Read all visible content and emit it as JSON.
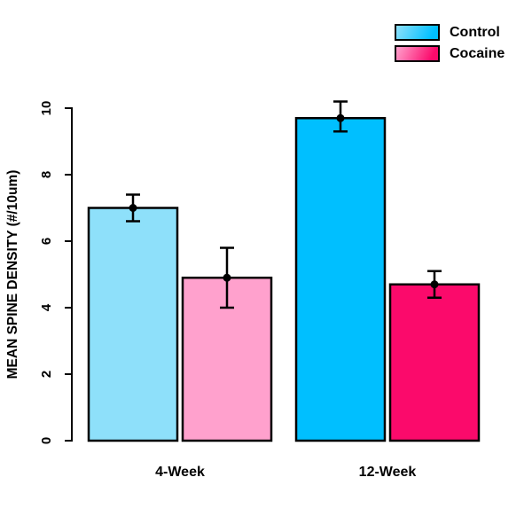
{
  "figure": {
    "background": "#FFFFFF"
  },
  "chart_data": {
    "type": "bar",
    "title": "",
    "xlabel": "",
    "ylabel": "MEAN SPINE DENSITY (#/10um)",
    "ylim": [
      0,
      10
    ],
    "yticks": [
      0,
      2,
      4,
      6,
      8,
      10
    ],
    "grid": false,
    "categories": [
      "4-Week",
      "12-Week"
    ],
    "series": [
      {
        "name": "Control",
        "values": [
          7.0,
          9.7
        ],
        "error_low": [
          6.6,
          9.3
        ],
        "error_high": [
          7.4,
          10.2
        ],
        "bar_colors": [
          "#8EE0FA",
          "#00BFFF"
        ]
      },
      {
        "name": "Cocaine",
        "values": [
          4.9,
          4.7
        ],
        "error_low": [
          4.0,
          4.3
        ],
        "error_high": [
          5.8,
          5.1
        ],
        "bar_colors": [
          "#FFA1CD",
          "#FB0A6B"
        ]
      }
    ],
    "legend": {
      "position": "top-right",
      "entries": [
        {
          "label": "Control",
          "color_light": "#8EE0FA",
          "color_dark": "#00BFFF"
        },
        {
          "label": "Cocaine",
          "color_light": "#FFA1CD",
          "color_dark": "#FB0A6B"
        }
      ]
    },
    "axis_color": "#000000",
    "bar_border_color": "#000000",
    "error_bar_color": "#000000"
  }
}
